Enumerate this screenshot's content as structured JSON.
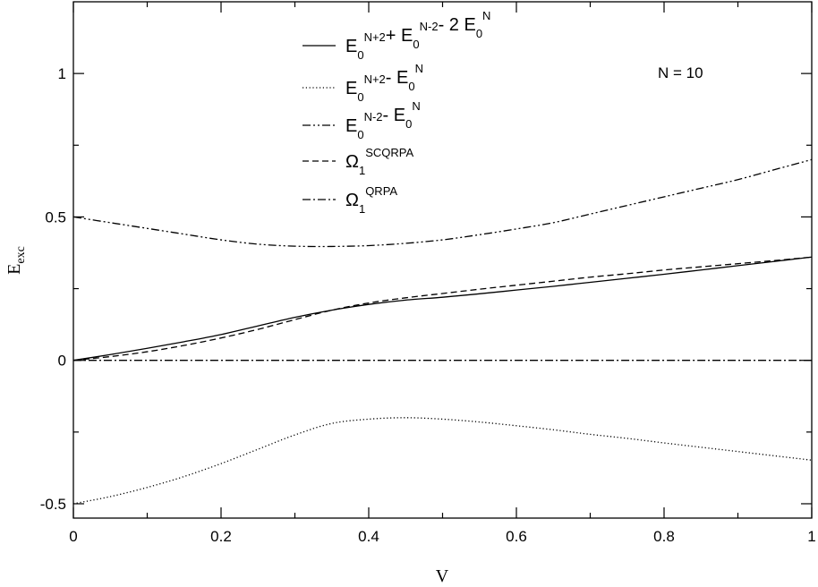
{
  "chart_data": {
    "type": "line",
    "xlabel": "V",
    "ylabel": "E",
    "ylabel_sub": "exc",
    "xlim": [
      0,
      1
    ],
    "ylim": [
      -0.55,
      1.25
    ],
    "xticks": [
      0,
      0.2,
      0.4,
      0.6,
      0.8,
      1
    ],
    "xtick_labels": [
      "0",
      "0.2",
      "0.4",
      "0.6",
      "0.8",
      "1"
    ],
    "yticks": [
      -0.5,
      0,
      0.5,
      1
    ],
    "ytick_labels": [
      "-0.5",
      "0",
      "0.5",
      "1"
    ],
    "grid": false,
    "legend_position": "top-center",
    "annotation": "N = 10",
    "series": [
      {
        "legend": [
          {
            "t": "E",
            "sub": "0",
            "sup": "N+2"
          },
          {
            "t": "+ E",
            "sub": "0",
            "sup": "N-2"
          },
          {
            "t": "- 2 E",
            "sub": "0",
            "sup": "N"
          }
        ],
        "dash": "solid",
        "x": [
          0,
          0.05,
          0.1,
          0.15,
          0.2,
          0.25,
          0.3,
          0.35,
          0.4,
          0.45,
          0.5,
          0.55,
          0.6,
          0.65,
          0.7,
          0.75,
          0.8,
          0.85,
          0.9,
          0.95,
          1.0
        ],
        "y": [
          0,
          0.02,
          0.042,
          0.065,
          0.09,
          0.12,
          0.15,
          0.175,
          0.195,
          0.21,
          0.22,
          0.232,
          0.245,
          0.258,
          0.272,
          0.286,
          0.3,
          0.315,
          0.33,
          0.345,
          0.36
        ]
      },
      {
        "legend": [
          {
            "t": "E",
            "sub": "0",
            "sup": "N+2"
          },
          {
            "t": "- E",
            "sub": "0",
            "sup": "N"
          }
        ],
        "dash": "dotted",
        "x": [
          0,
          0.05,
          0.1,
          0.15,
          0.2,
          0.25,
          0.3,
          0.35,
          0.4,
          0.45,
          0.5,
          0.55,
          0.6,
          0.65,
          0.7,
          0.75,
          0.8,
          0.85,
          0.9,
          0.95,
          1.0
        ],
        "y": [
          -0.5,
          -0.475,
          -0.443,
          -0.405,
          -0.36,
          -0.31,
          -0.26,
          -0.22,
          -0.205,
          -0.2,
          -0.205,
          -0.215,
          -0.228,
          -0.242,
          -0.258,
          -0.272,
          -0.288,
          -0.303,
          -0.318,
          -0.333,
          -0.348
        ]
      },
      {
        "legend": [
          {
            "t": "E",
            "sub": "0",
            "sup": "N-2"
          },
          {
            "t": "- E",
            "sub": "0",
            "sup": "N"
          }
        ],
        "dash": "dashdotdot",
        "x": [
          0,
          0.05,
          0.1,
          0.15,
          0.2,
          0.25,
          0.3,
          0.35,
          0.4,
          0.45,
          0.5,
          0.55,
          0.6,
          0.65,
          0.7,
          0.75,
          0.8,
          0.85,
          0.9,
          0.95,
          1.0
        ],
        "y": [
          0.5,
          0.48,
          0.46,
          0.44,
          0.42,
          0.405,
          0.398,
          0.397,
          0.4,
          0.408,
          0.42,
          0.438,
          0.458,
          0.48,
          0.51,
          0.54,
          0.57,
          0.6,
          0.63,
          0.665,
          0.7
        ]
      },
      {
        "legend": [
          {
            "t": "Ω",
            "sub": "1",
            "sup": "SCQRPA"
          }
        ],
        "dash": "dashed",
        "x": [
          0,
          0.05,
          0.1,
          0.15,
          0.2,
          0.25,
          0.3,
          0.35,
          0.4,
          0.45,
          0.5,
          0.55,
          0.6,
          0.65,
          0.7,
          0.75,
          0.8,
          0.85,
          0.9,
          0.95,
          1.0
        ],
        "y": [
          0,
          0.013,
          0.03,
          0.052,
          0.078,
          0.108,
          0.142,
          0.175,
          0.2,
          0.218,
          0.233,
          0.248,
          0.262,
          0.276,
          0.29,
          0.302,
          0.315,
          0.326,
          0.337,
          0.348,
          0.36
        ]
      },
      {
        "legend": [
          {
            "t": "Ω",
            "sub": "1",
            "sup": "QRPA"
          }
        ],
        "dash": "dashdot",
        "x": [
          0,
          1
        ],
        "y": [
          0,
          0
        ]
      }
    ]
  }
}
